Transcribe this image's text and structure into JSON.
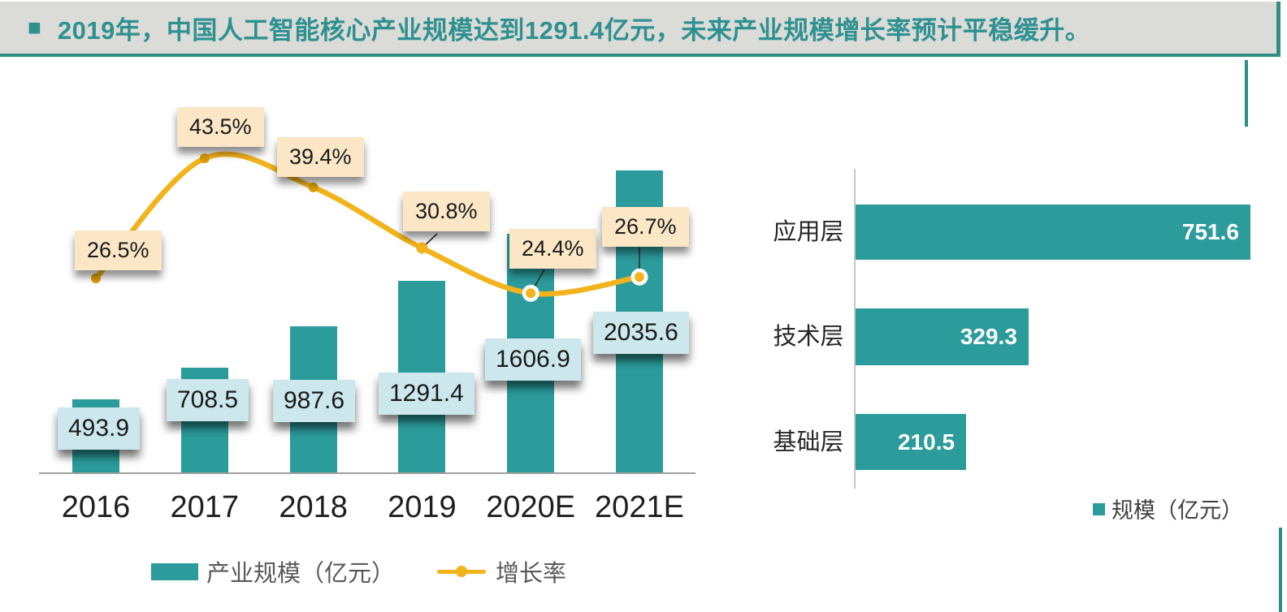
{
  "header": {
    "bullet": "■",
    "text": "2019年，中国人工智能核心产业规模达到1291.4亿元，未来产业规模增长率预计平稳缓升。"
  },
  "colors": {
    "teal": "#2B9B9B",
    "gold": "#F2B31C",
    "gold_dark": "#D99E06",
    "cream_box": "#FBE6C6",
    "blue_box": "#CCE8EC",
    "header_bg": "#DBDBD8",
    "header_text": "#2E9190",
    "accent_border": "#2F8E83",
    "axis_gray": "#9E9E9E",
    "legend_text": "#595959",
    "bar_value_white": "#FFFFFF"
  },
  "chart_data": [
    {
      "id": "ai-core-industry-scale",
      "type": "combo",
      "bar_type": "bar",
      "line_type": "line",
      "categories": [
        "2016",
        "2017",
        "2018",
        "2019",
        "2020E",
        "2021E"
      ],
      "series": [
        {
          "name": "产业规模（亿元）",
          "type": "bar",
          "values": [
            493.9,
            708.5,
            987.6,
            1291.4,
            1606.9,
            2035.6
          ],
          "value_labels": [
            "493.9",
            "708.5",
            "987.6",
            "1291.4",
            "1606.9",
            "2035.6"
          ]
        },
        {
          "name": "增长率",
          "type": "line",
          "values": [
            26.5,
            43.5,
            39.4,
            30.8,
            24.4,
            26.7
          ],
          "value_labels": [
            "26.5%",
            "43.5%",
            "39.4%",
            "30.8%",
            "24.4%",
            "26.7%"
          ]
        }
      ],
      "legend_position": "bottom",
      "grid": false
    },
    {
      "id": "ai-layer-scale",
      "type": "bar",
      "orientation": "horizontal",
      "categories": [
        "应用层",
        "技术层",
        "基础层"
      ],
      "values": [
        751.6,
        329.3,
        210.5
      ],
      "value_labels": [
        "751.6",
        "329.3",
        "210.5"
      ],
      "legend": [
        "规模（亿元）"
      ],
      "legend_position": "bottom-right",
      "grid": false
    }
  ]
}
